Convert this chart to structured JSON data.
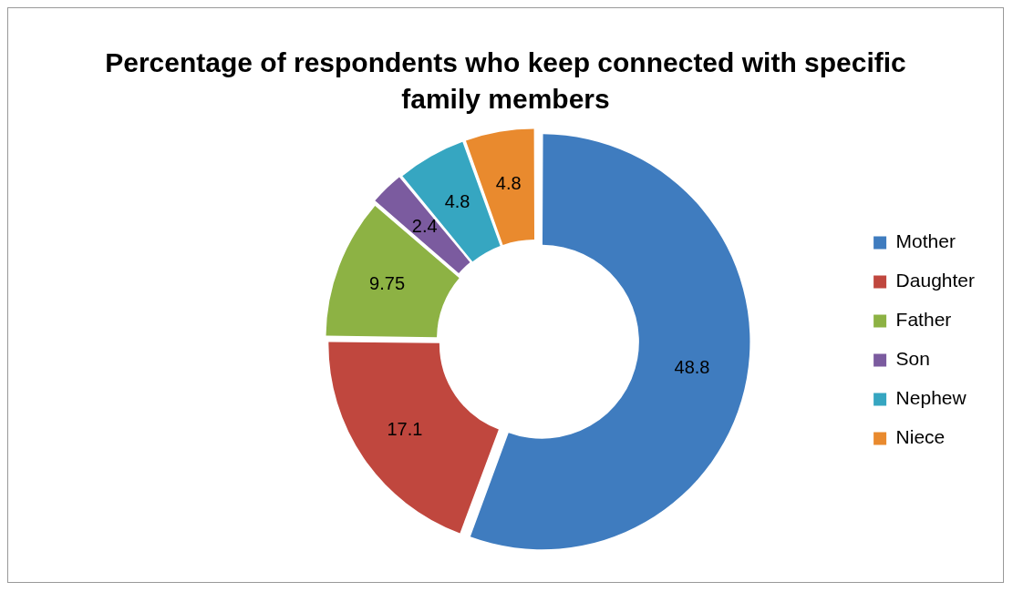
{
  "chart_data": {
    "type": "donut",
    "title": "Percentage of respondents who keep connected with specific family members",
    "categories": [
      "Mother",
      "Daughter",
      "Father",
      "Son",
      "Nephew",
      "Niece"
    ],
    "values": [
      48.8,
      17.1,
      9.75,
      2.4,
      4.8,
      4.8
    ],
    "colors": [
      "#3f7cbf",
      "#c0473e",
      "#8db244",
      "#7b5b9f",
      "#36a6c1",
      "#e98a2e"
    ],
    "legend": "right",
    "data_labels": true
  }
}
